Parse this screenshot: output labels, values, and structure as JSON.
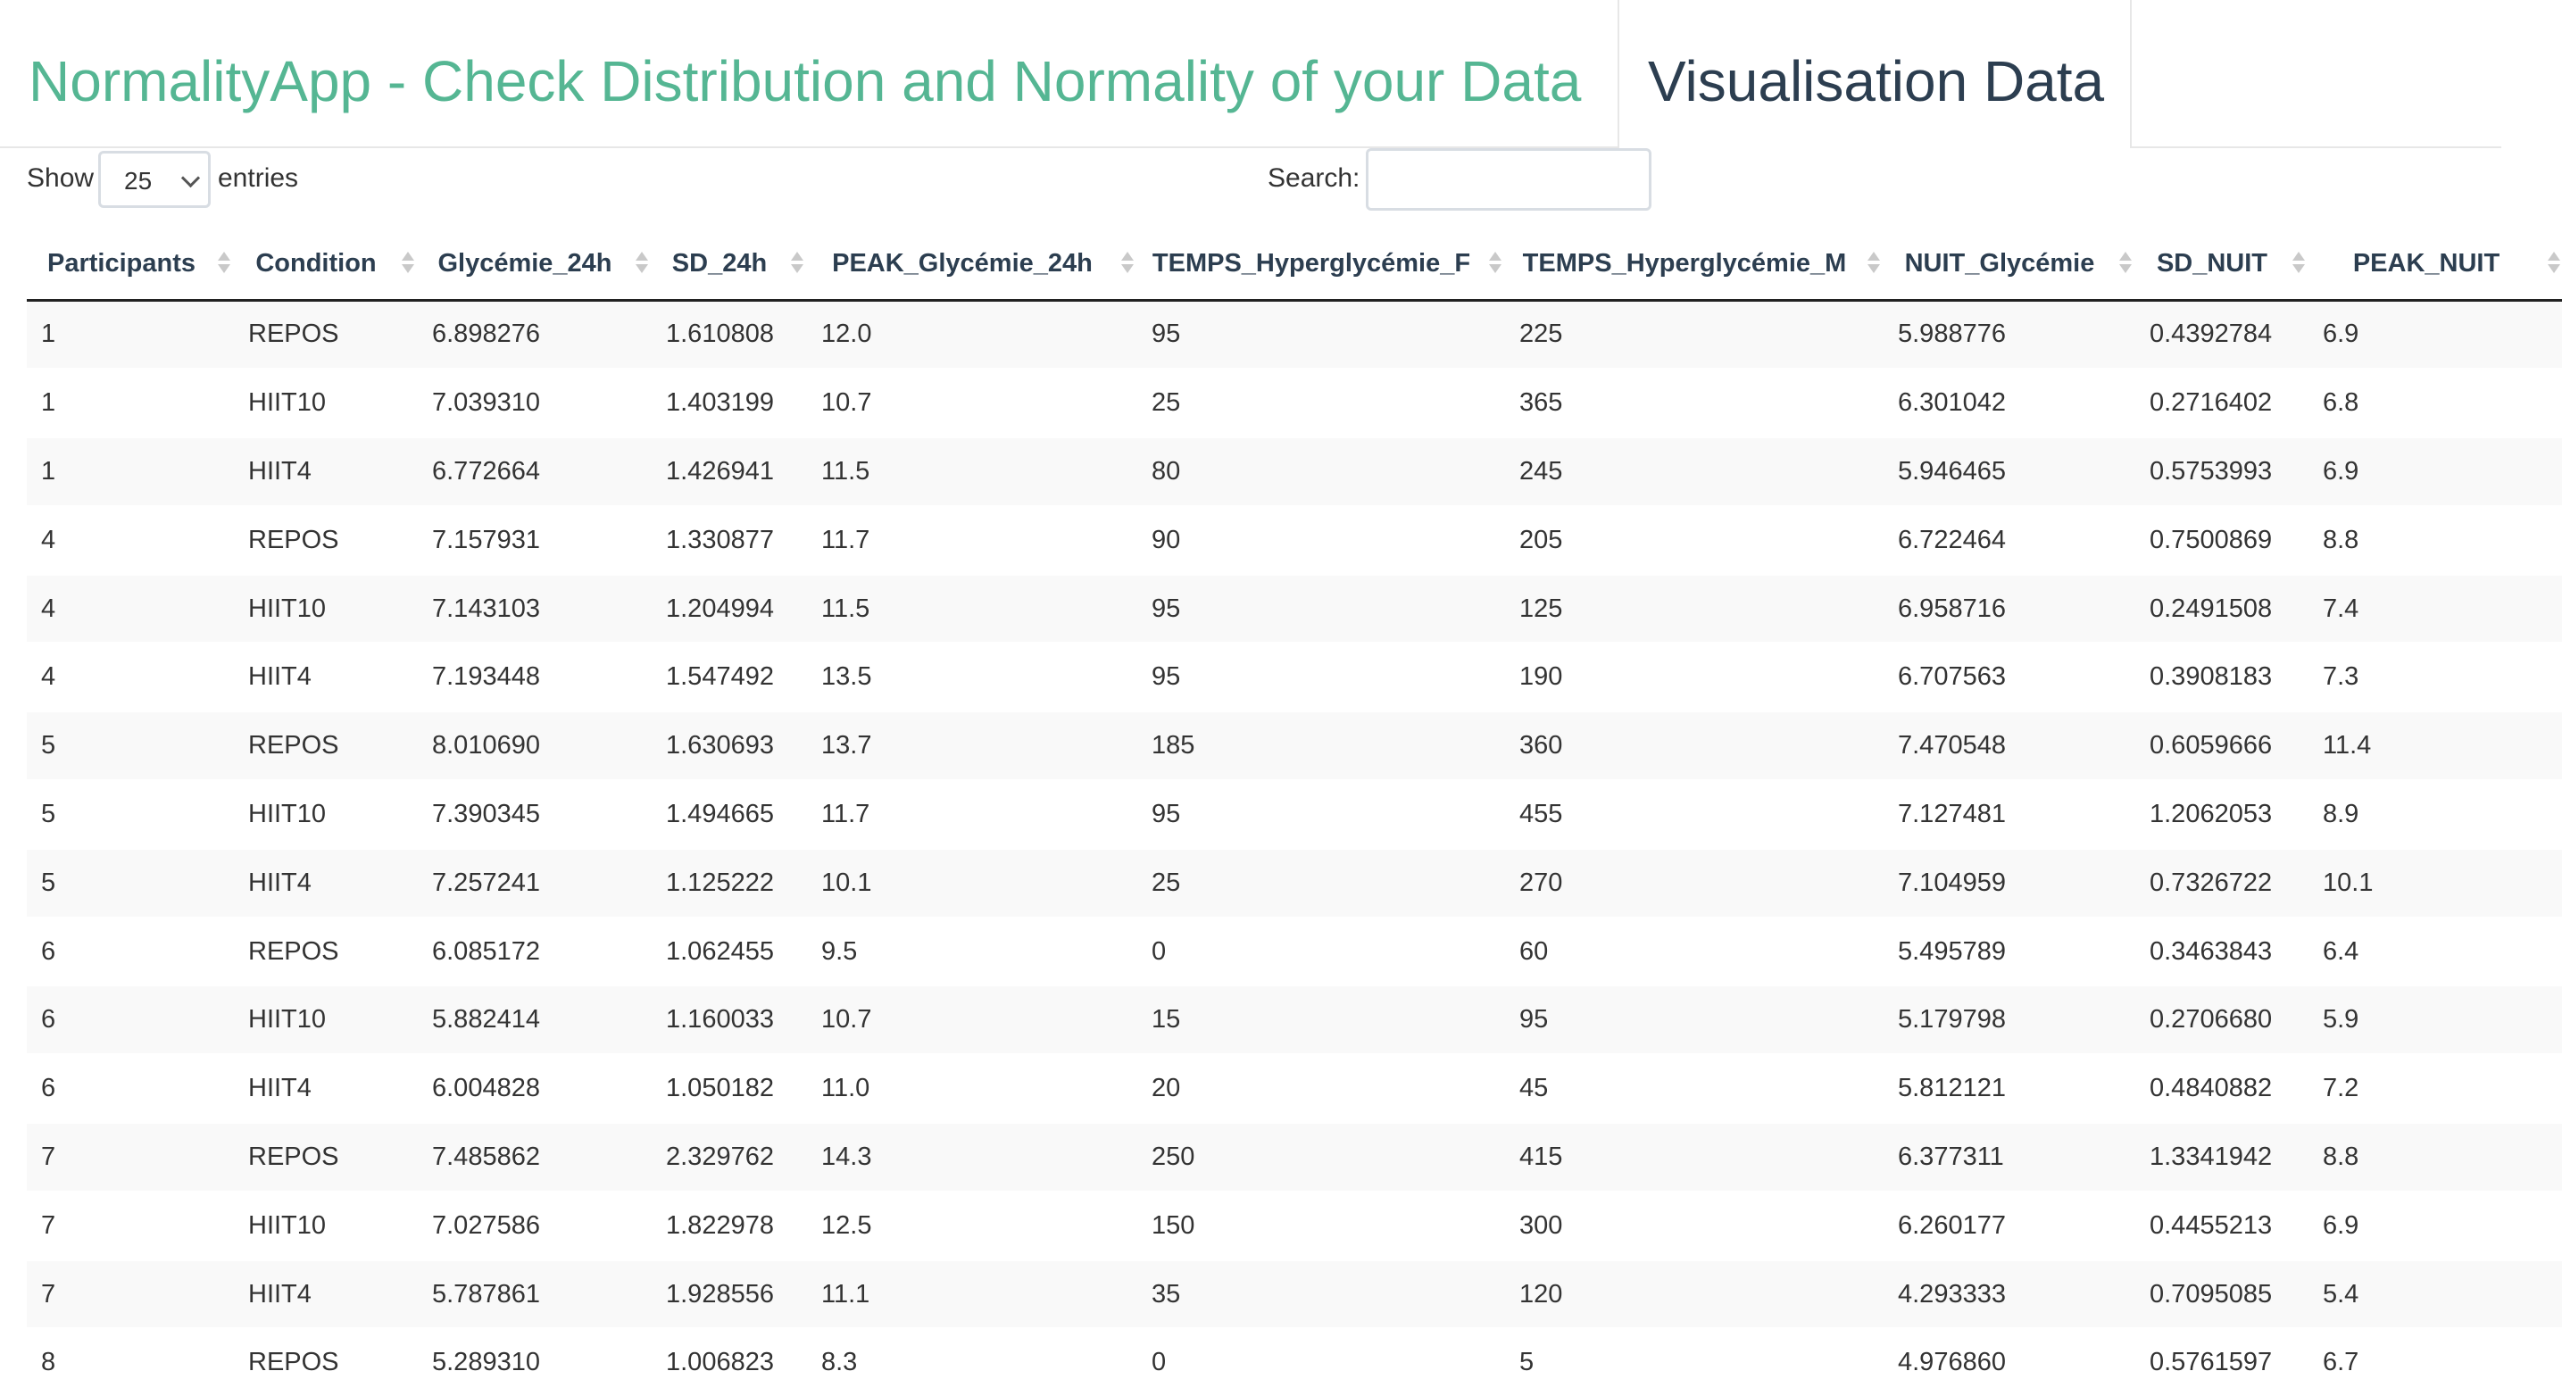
{
  "header": {
    "brand": "NormalityApp - Check Distribution and Normality of your Data",
    "active_tab": "Visualisation Data"
  },
  "controls": {
    "show_label": "Show",
    "entries_label": "entries",
    "length_value": "25",
    "search_label": "Search:",
    "search_value": ""
  },
  "table": {
    "columns": [
      "Participants",
      "Condition",
      "Glycémie_24h",
      "SD_24h",
      "PEAK_Glycémie_24h",
      "TEMPS_Hyperglycémie_F",
      "TEMPS_Hyperglycémie_M",
      "NUIT_Glycémie",
      "SD_NUIT",
      "PEAK_NUIT"
    ],
    "rows": [
      [
        "1",
        "REPOS",
        "6.898276",
        "1.610808",
        "12.0",
        "95",
        "225",
        "5.988776",
        "0.4392784",
        "6.9"
      ],
      [
        "1",
        "HIIT10",
        "7.039310",
        "1.403199",
        "10.7",
        "25",
        "365",
        "6.301042",
        "0.2716402",
        "6.8"
      ],
      [
        "1",
        "HIIT4",
        "6.772664",
        "1.426941",
        "11.5",
        "80",
        "245",
        "5.946465",
        "0.5753993",
        "6.9"
      ],
      [
        "4",
        "REPOS",
        "7.157931",
        "1.330877",
        "11.7",
        "90",
        "205",
        "6.722464",
        "0.7500869",
        "8.8"
      ],
      [
        "4",
        "HIIT10",
        "7.143103",
        "1.204994",
        "11.5",
        "95",
        "125",
        "6.958716",
        "0.2491508",
        "7.4"
      ],
      [
        "4",
        "HIIT4",
        "7.193448",
        "1.547492",
        "13.5",
        "95",
        "190",
        "6.707563",
        "0.3908183",
        "7.3"
      ],
      [
        "5",
        "REPOS",
        "8.010690",
        "1.630693",
        "13.7",
        "185",
        "360",
        "7.470548",
        "0.6059666",
        "11.4"
      ],
      [
        "5",
        "HIIT10",
        "7.390345",
        "1.494665",
        "11.7",
        "95",
        "455",
        "7.127481",
        "1.2062053",
        "8.9"
      ],
      [
        "5",
        "HIIT4",
        "7.257241",
        "1.125222",
        "10.1",
        "25",
        "270",
        "7.104959",
        "0.7326722",
        "10.1"
      ],
      [
        "6",
        "REPOS",
        "6.085172",
        "1.062455",
        "9.5",
        "0",
        "60",
        "5.495789",
        "0.3463843",
        "6.4"
      ],
      [
        "6",
        "HIIT10",
        "5.882414",
        "1.160033",
        "10.7",
        "15",
        "95",
        "5.179798",
        "0.2706680",
        "5.9"
      ],
      [
        "6",
        "HIIT4",
        "6.004828",
        "1.050182",
        "11.0",
        "20",
        "45",
        "5.812121",
        "0.4840882",
        "7.2"
      ],
      [
        "7",
        "REPOS",
        "7.485862",
        "2.329762",
        "14.3",
        "250",
        "415",
        "6.377311",
        "1.3341942",
        "8.8"
      ],
      [
        "7",
        "HIIT10",
        "7.027586",
        "1.822978",
        "12.5",
        "150",
        "300",
        "6.260177",
        "0.4455213",
        "6.9"
      ],
      [
        "7",
        "HIIT4",
        "5.787861",
        "1.928556",
        "11.1",
        "35",
        "120",
        "4.293333",
        "0.7095085",
        "5.4"
      ],
      [
        "8",
        "REPOS",
        "5.289310",
        "1.006823",
        "8.3",
        "0",
        "5",
        "4.976860",
        "0.5761597",
        "6.7"
      ]
    ]
  }
}
